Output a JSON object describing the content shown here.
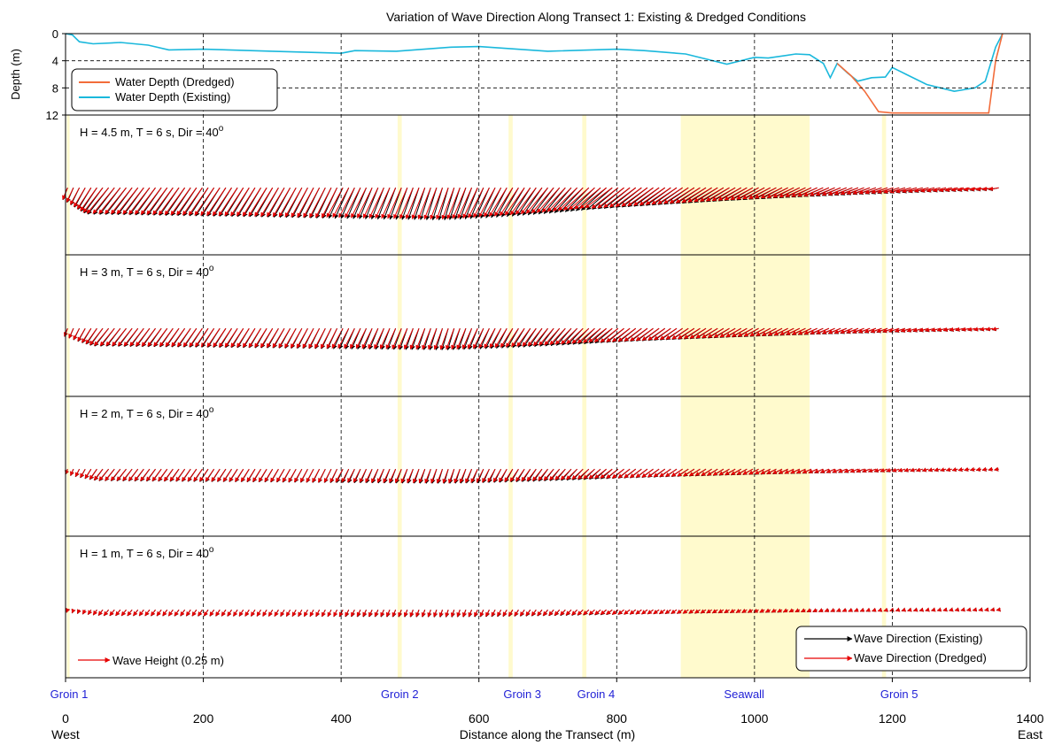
{
  "chart_data": {
    "type": "line",
    "title": "Variation of Wave Direction Along Transect 1: Existing & Dredged Conditions",
    "xlabel": "Distance along the Transect (m)",
    "xlim": [
      0,
      1400
    ],
    "x_ticks": [
      "0",
      "200",
      "400",
      "600",
      "800",
      "1000",
      "1200",
      "1400"
    ],
    "x_end_labels": {
      "left": "West",
      "right": "East"
    },
    "depth_panel": {
      "ylabel": "Depth (m)",
      "ylim": [
        0,
        12
      ],
      "y_ticks": [
        "0",
        "4",
        "8",
        "12"
      ],
      "legend": [
        "Water Depth (Dredged)",
        "Water Depth (Existing)"
      ],
      "legend_placement": "top-left",
      "series": [
        {
          "name": "Water Depth (Existing)",
          "color": "#1ab8dc",
          "x": [
            0,
            10,
            20,
            40,
            80,
            120,
            150,
            200,
            300,
            400,
            420,
            480,
            560,
            600,
            700,
            800,
            840,
            900,
            960,
            1000,
            1020,
            1060,
            1080,
            1100,
            1110,
            1120,
            1135,
            1150,
            1170,
            1190,
            1200,
            1220,
            1250,
            1290,
            1320,
            1335,
            1350,
            1360
          ],
          "y": [
            0,
            0.2,
            1.2,
            1.5,
            1.3,
            1.7,
            2.4,
            2.3,
            2.6,
            2.9,
            2.5,
            2.6,
            2.0,
            1.9,
            2.6,
            2.3,
            2.5,
            3.0,
            4.5,
            3.5,
            3.6,
            3.0,
            3.1,
            4.4,
            6.5,
            4.4,
            5.8,
            7.0,
            6.5,
            6.4,
            5.0,
            6.0,
            7.5,
            8.5,
            8.0,
            7.0,
            2.0,
            0
          ]
        },
        {
          "name": "Water Depth (Dredged)",
          "color": "#f26c3a",
          "x": [
            1120,
            1140,
            1160,
            1180,
            1200,
            1220,
            1300,
            1340,
            1350,
            1360
          ],
          "y": [
            4.4,
            6.2,
            8.5,
            11.5,
            11.7,
            11.7,
            11.7,
            11.7,
            4.0,
            0
          ]
        }
      ]
    },
    "structures": [
      {
        "label": "Groin 1",
        "x": 2,
        "width": 3
      },
      {
        "label": "Groin 2",
        "x": 482,
        "width": 6
      },
      {
        "label": "Groin 3",
        "x": 643,
        "width": 6
      },
      {
        "label": "Groin 4",
        "x": 750,
        "width": 6
      },
      {
        "label": "Seawall",
        "x": 893,
        "width": 187
      },
      {
        "label": "Groin 5",
        "x": 1185,
        "width": 6
      }
    ],
    "structure_color": "#fff9c4",
    "wave_panels": [
      {
        "label": "H = 4.5 m, T = 6 s, Dir = 40",
        "sup": "o",
        "H": 4.5,
        "T": 6,
        "dir_deg": 40
      },
      {
        "label": "H = 3 m, T = 6 s, Dir = 40",
        "sup": "o",
        "H": 3,
        "T": 6,
        "dir_deg": 40
      },
      {
        "label": "H = 2 m, T = 6 s, Dir = 40",
        "sup": "o",
        "H": 2,
        "T": 6,
        "dir_deg": 40
      },
      {
        "label": "H = 1 m, T = 6 s, Dir = 40",
        "sup": "o",
        "H": 1,
        "T": 6,
        "dir_deg": 40
      }
    ],
    "wave_height_scale": {
      "label": "Wave Height (0.25 m)",
      "value_m": 0.25
    },
    "wave_legend": [
      "Wave Direction (Existing)",
      "Wave Direction (Dredged)"
    ],
    "wave_legend_placement": "bottom-right",
    "series_colors": {
      "existing": "#000000",
      "dredged": "#e60000"
    },
    "arrow_x_range": [
      0,
      1355
    ],
    "arrow_spacing_m": 8.5
  }
}
